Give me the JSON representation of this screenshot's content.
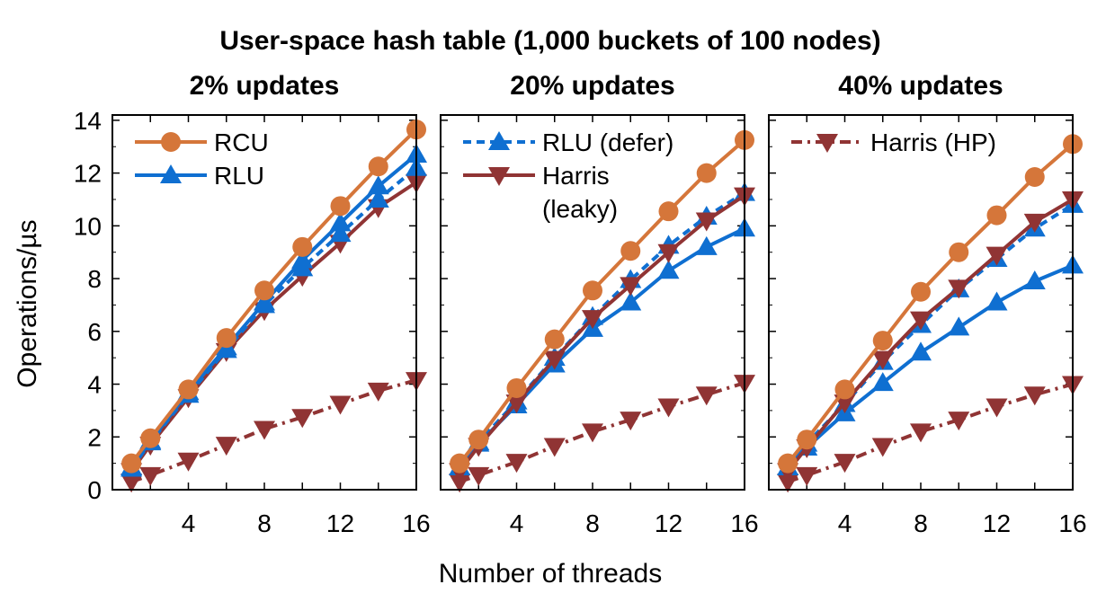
{
  "figure": {
    "title": "User-space hash table (1,000 buckets of 100 nodes)",
    "ylabel": "Operations/µs",
    "xlabel": "Number of threads"
  },
  "series_styles": {
    "RCU": {
      "color": "#d5763a",
      "marker": "circle",
      "dash": "solid"
    },
    "RLU": {
      "color": "#0f6fd1",
      "marker": "triangle-up",
      "dash": "solid"
    },
    "RLU (defer)": {
      "color": "#0f6fd1",
      "marker": "triangle-up",
      "dash": "dashed"
    },
    "Harris (leaky)": {
      "color": "#903434",
      "marker": "triangle-down",
      "dash": "solid"
    },
    "Harris (HP)": {
      "color": "#903434",
      "marker": "triangle-down",
      "dash": "dashdot"
    }
  },
  "chart_data": [
    {
      "type": "line",
      "title": "2% updates",
      "xticks": [
        4,
        8,
        12,
        16
      ],
      "yticks": [
        0,
        2,
        4,
        6,
        8,
        10,
        12,
        14
      ],
      "xlim": [
        0,
        16
      ],
      "ylim": [
        0,
        14.2
      ],
      "grid": false,
      "legend": {
        "position": "top-left",
        "entries": [
          "RCU",
          "RLU"
        ]
      },
      "x": [
        1,
        2,
        4,
        6,
        8,
        10,
        12,
        14,
        16
      ],
      "series": [
        {
          "name": "Harris (HP)",
          "values": [
            0.3,
            0.55,
            1.1,
            1.7,
            2.3,
            2.75,
            3.25,
            3.75,
            4.15
          ]
        },
        {
          "name": "Harris (leaky)",
          "values": [
            0.7,
            1.7,
            3.5,
            5.25,
            6.8,
            8.1,
            9.35,
            10.7,
            11.65
          ]
        },
        {
          "name": "RLU (defer)",
          "values": [
            0.8,
            1.8,
            3.6,
            5.3,
            7.0,
            8.4,
            9.7,
            11.0,
            12.2
          ]
        },
        {
          "name": "RLU",
          "values": [
            0.85,
            1.85,
            3.7,
            5.4,
            7.1,
            8.7,
            10.1,
            11.5,
            12.7
          ]
        },
        {
          "name": "RCU",
          "values": [
            1.0,
            1.95,
            3.8,
            5.75,
            7.55,
            9.2,
            10.75,
            12.25,
            13.65
          ]
        }
      ]
    },
    {
      "type": "line",
      "title": "20% updates",
      "xticks": [
        4,
        8,
        12,
        16
      ],
      "yticks": [
        0,
        2,
        4,
        6,
        8,
        10,
        12,
        14
      ],
      "xlim": [
        0,
        16
      ],
      "ylim": [
        0,
        14.2
      ],
      "grid": false,
      "legend": {
        "position": "top-left",
        "entries": [
          "RLU (defer)",
          "Harris (leaky)"
        ]
      },
      "x": [
        1,
        2,
        4,
        6,
        8,
        10,
        12,
        14,
        16
      ],
      "series": [
        {
          "name": "Harris (HP)",
          "values": [
            0.3,
            0.55,
            1.05,
            1.65,
            2.2,
            2.65,
            3.15,
            3.6,
            4.05
          ]
        },
        {
          "name": "RLU",
          "values": [
            0.85,
            1.75,
            3.2,
            4.75,
            6.1,
            7.1,
            8.3,
            9.2,
            9.9
          ]
        },
        {
          "name": "RLU (defer)",
          "values": [
            0.85,
            1.8,
            3.35,
            5.0,
            6.55,
            7.95,
            9.25,
            10.35,
            11.25
          ]
        },
        {
          "name": "Harris (leaky)",
          "values": [
            0.7,
            1.65,
            3.3,
            4.95,
            6.5,
            7.75,
            9.0,
            10.2,
            11.15
          ]
        },
        {
          "name": "RCU",
          "values": [
            1.0,
            1.9,
            3.85,
            5.7,
            7.55,
            9.05,
            10.55,
            12.0,
            13.25
          ]
        }
      ]
    },
    {
      "type": "line",
      "title": "40% updates",
      "xticks": [
        4,
        8,
        12,
        16
      ],
      "yticks": [
        0,
        2,
        4,
        6,
        8,
        10,
        12,
        14
      ],
      "xlim": [
        0,
        16
      ],
      "ylim": [
        0,
        14.2
      ],
      "grid": false,
      "legend": {
        "position": "top-left",
        "entries": [
          "Harris (HP)"
        ]
      },
      "x": [
        1,
        2,
        4,
        6,
        8,
        10,
        12,
        14,
        16
      ],
      "series": [
        {
          "name": "Harris (HP)",
          "values": [
            0.3,
            0.55,
            1.05,
            1.65,
            2.2,
            2.65,
            3.15,
            3.6,
            4.0
          ]
        },
        {
          "name": "RLU",
          "values": [
            0.85,
            1.6,
            2.9,
            4.05,
            5.2,
            6.15,
            7.1,
            7.9,
            8.5
          ]
        },
        {
          "name": "RLU (defer)",
          "values": [
            0.85,
            1.75,
            3.25,
            4.85,
            6.25,
            7.6,
            8.75,
            9.9,
            10.8
          ]
        },
        {
          "name": "Harris (leaky)",
          "values": [
            0.7,
            1.6,
            3.3,
            4.95,
            6.45,
            7.65,
            8.9,
            10.15,
            11.0
          ]
        },
        {
          "name": "RCU",
          "values": [
            1.0,
            1.9,
            3.8,
            5.65,
            7.5,
            9.0,
            10.4,
            11.85,
            13.1
          ]
        }
      ]
    }
  ]
}
